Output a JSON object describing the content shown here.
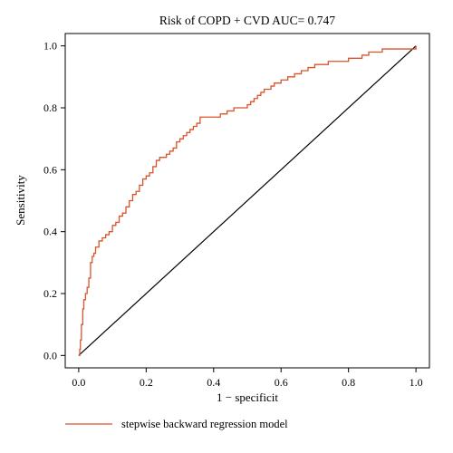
{
  "colors": {
    "roc": "#d9542b",
    "frame": "#000000",
    "diagonal": "#000000"
  },
  "chart_data": {
    "type": "line",
    "title": "Risk of COPD + CVD AUC= 0.747",
    "xlabel": "1 − specificit",
    "ylabel": "Sensitivity",
    "xlim": [
      -0.04,
      1.04
    ],
    "ylim": [
      -0.04,
      1.04
    ],
    "xticks": [
      0.0,
      0.2,
      0.4,
      0.6,
      0.8,
      1.0
    ],
    "yticks": [
      0.0,
      0.2,
      0.4,
      0.6,
      0.8,
      1.0
    ],
    "xtick_labels": [
      "0.0",
      "0.2",
      "0.4",
      "0.6",
      "0.8",
      "1.0"
    ],
    "ytick_labels": [
      "0.0",
      "0.2",
      "0.4",
      "0.6",
      "0.8",
      "1.0"
    ],
    "grid": false,
    "legend": {
      "placement": "bottom-left",
      "entries": [
        "stepwise backward regression model"
      ]
    },
    "reference_line": {
      "x": [
        0,
        1
      ],
      "y": [
        0,
        1
      ]
    },
    "series": [
      {
        "name": "stepwise backward regression model",
        "x": [
          0.0,
          0.003,
          0.005,
          0.008,
          0.012,
          0.015,
          0.02,
          0.025,
          0.03,
          0.035,
          0.04,
          0.045,
          0.05,
          0.06,
          0.07,
          0.08,
          0.09,
          0.1,
          0.11,
          0.12,
          0.13,
          0.14,
          0.15,
          0.16,
          0.17,
          0.18,
          0.19,
          0.2,
          0.21,
          0.22,
          0.23,
          0.24,
          0.25,
          0.26,
          0.27,
          0.28,
          0.29,
          0.3,
          0.31,
          0.32,
          0.33,
          0.34,
          0.35,
          0.36,
          0.37,
          0.38,
          0.39,
          0.4,
          0.42,
          0.44,
          0.46,
          0.48,
          0.5,
          0.51,
          0.52,
          0.53,
          0.54,
          0.55,
          0.56,
          0.57,
          0.58,
          0.6,
          0.62,
          0.64,
          0.66,
          0.68,
          0.7,
          0.72,
          0.74,
          0.76,
          0.78,
          0.8,
          0.82,
          0.84,
          0.86,
          0.88,
          0.9,
          0.92,
          0.94,
          0.96,
          0.98,
          1.0
        ],
        "y": [
          0.0,
          0.02,
          0.05,
          0.1,
          0.15,
          0.18,
          0.2,
          0.22,
          0.25,
          0.3,
          0.32,
          0.33,
          0.35,
          0.37,
          0.38,
          0.39,
          0.4,
          0.42,
          0.43,
          0.45,
          0.46,
          0.48,
          0.5,
          0.52,
          0.53,
          0.55,
          0.57,
          0.58,
          0.59,
          0.61,
          0.63,
          0.64,
          0.64,
          0.65,
          0.66,
          0.67,
          0.69,
          0.7,
          0.71,
          0.72,
          0.73,
          0.74,
          0.75,
          0.77,
          0.77,
          0.77,
          0.77,
          0.77,
          0.78,
          0.79,
          0.8,
          0.8,
          0.81,
          0.82,
          0.83,
          0.84,
          0.85,
          0.86,
          0.86,
          0.87,
          0.88,
          0.89,
          0.9,
          0.91,
          0.92,
          0.93,
          0.94,
          0.94,
          0.95,
          0.95,
          0.95,
          0.96,
          0.96,
          0.97,
          0.98,
          0.98,
          0.99,
          0.99,
          0.99,
          0.99,
          0.99,
          1.0
        ]
      }
    ]
  }
}
